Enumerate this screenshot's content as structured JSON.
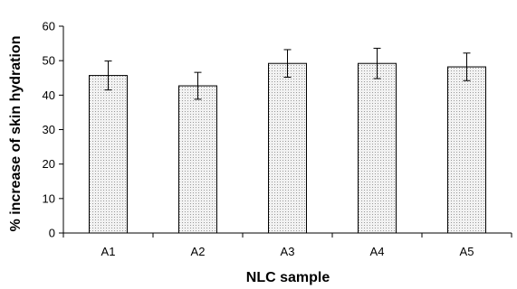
{
  "chart_data": {
    "type": "bar",
    "title": "",
    "xlabel": "NLC sample",
    "ylabel": "% increase of skin hydration",
    "ylim": [
      0,
      60
    ],
    "yticks": [
      0,
      10,
      20,
      30,
      40,
      50,
      60
    ],
    "categories": [
      "A1",
      "A2",
      "A3",
      "A4",
      "A5"
    ],
    "values": [
      45.7,
      42.7,
      49.2,
      49.2,
      48.2
    ],
    "errors": [
      4.2,
      3.9,
      4.0,
      4.4,
      4.0
    ],
    "bar_fill": "stippled light gray",
    "grid": false,
    "legend": "none"
  },
  "colors": {
    "bar_fill": "#f2f2f2",
    "bar_dots": "#9a9a9a",
    "stroke": "#000000"
  }
}
